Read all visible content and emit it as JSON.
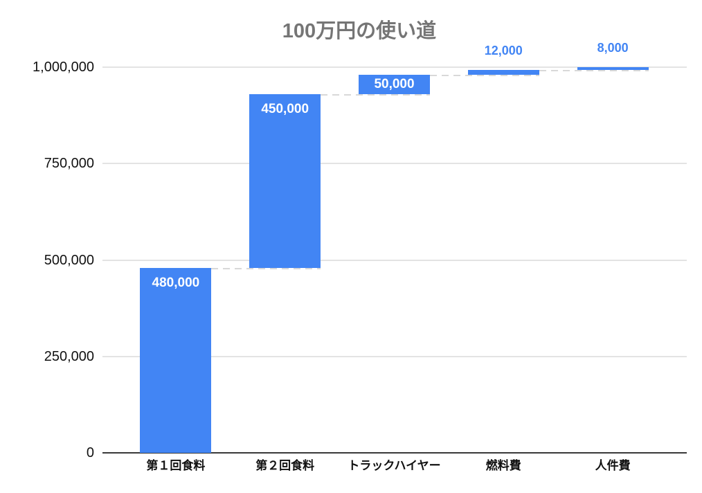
{
  "chart_data": {
    "type": "bar",
    "subtype": "waterfall",
    "title": "100万円の使い道",
    "categories": [
      "第１回食料",
      "第２回食料",
      "トラックハイヤー",
      "燃料費",
      "人件費"
    ],
    "values": [
      480000,
      450000,
      50000,
      12000,
      8000
    ],
    "value_labels": [
      "480,000",
      "450,000",
      "50,000",
      "12,000",
      "8,000"
    ],
    "cumulative": [
      480000,
      930000,
      980000,
      992000,
      1000000
    ],
    "xlabel": "",
    "ylabel": "",
    "ylim": [
      0,
      1000000
    ],
    "yticks": [
      {
        "value": 0,
        "label": "0"
      },
      {
        "value": 250000,
        "label": "250,000"
      },
      {
        "value": 500000,
        "label": "500,000"
      },
      {
        "value": 750000,
        "label": "750,000"
      },
      {
        "value": 1000000,
        "label": "1,000,000"
      }
    ],
    "grid": "horizontal",
    "legend": "none",
    "colors": {
      "bar": "#4285F4",
      "label_inside": "#FFFFFF",
      "label_outside": "#4285F4",
      "title": "#757575",
      "tick": "#111111",
      "gridline": "#E3E3E3",
      "axis": "#383838",
      "connector": "#D8D8D8"
    }
  }
}
